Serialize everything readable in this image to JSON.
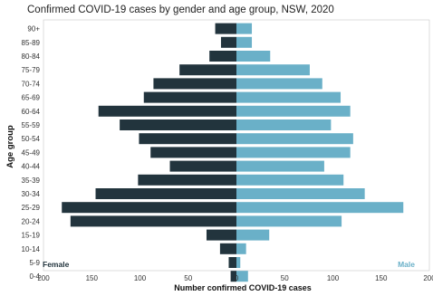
{
  "chart_data": {
    "type": "bar",
    "orientation": "horizontal",
    "layout": "population-pyramid",
    "title": "Confirmed COVID-19 cases by gender and age group, NSW, 2020",
    "xlabel": "Number confirmed COVID-19 cases",
    "ylabel": "Age group",
    "xlim": [
      -200,
      200
    ],
    "xticks": [
      -200,
      -150,
      -100,
      -50,
      0,
      50,
      100,
      150,
      200
    ],
    "xtick_labels": [
      "200",
      "150",
      "100",
      "50",
      "0",
      "50",
      "100",
      "150",
      "200"
    ],
    "categories": [
      "90+",
      "85-89",
      "80-84",
      "75-79",
      "70-74",
      "65-69",
      "60-64",
      "55-59",
      "50-54",
      "45-49",
      "40-44",
      "35-39",
      "30-34",
      "25-29",
      "20-24",
      "15-19",
      "10-14",
      "5-9",
      "0-4"
    ],
    "grid": false,
    "series": [
      {
        "name": "Female",
        "color": "#22343d",
        "values": [
          22,
          16,
          28,
          59,
          86,
          96,
          143,
          121,
          101,
          89,
          69,
          102,
          146,
          181,
          172,
          31,
          17,
          8,
          6
        ]
      },
      {
        "name": "Male",
        "color": "#6ab0c8",
        "values": [
          16,
          16,
          35,
          76,
          89,
          108,
          118,
          98,
          121,
          118,
          91,
          111,
          133,
          173,
          109,
          34,
          10,
          4,
          12
        ]
      }
    ]
  }
}
